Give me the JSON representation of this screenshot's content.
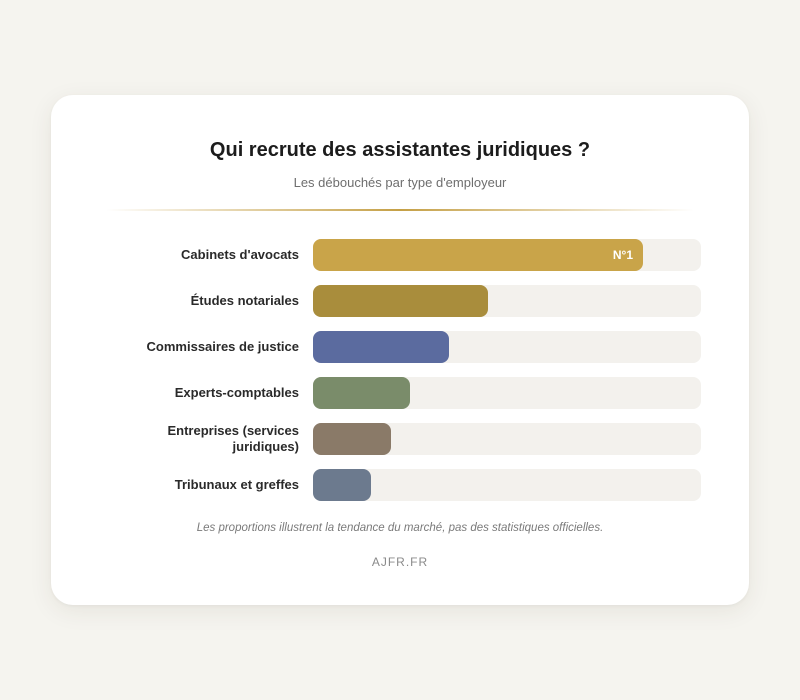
{
  "chart_data": {
    "type": "bar",
    "orientation": "horizontal",
    "title": "Qui recrute des assistantes juridiques ?",
    "subtitle": "Les débouchés par type d'employeur",
    "categories": [
      "Cabinets d'avocats",
      "Études notariales",
      "Commissaires de justice",
      "Experts-comptables",
      "Entreprises (services juridiques)",
      "Tribunaux et greffes"
    ],
    "values": [
      85,
      45,
      35,
      25,
      20,
      15
    ],
    "xlim": [
      0,
      100
    ],
    "colors": [
      "#c9a449",
      "#a98d3c",
      "#5b6b9f",
      "#7a8c6a",
      "#8a7a68",
      "#6c7a8e"
    ],
    "top_badge": "N°1",
    "grid": false,
    "legend": "none"
  },
  "footnote": "Les proportions illustrent la tendance du marché, pas des statistiques officielles.",
  "brand": "AJFR.FR"
}
